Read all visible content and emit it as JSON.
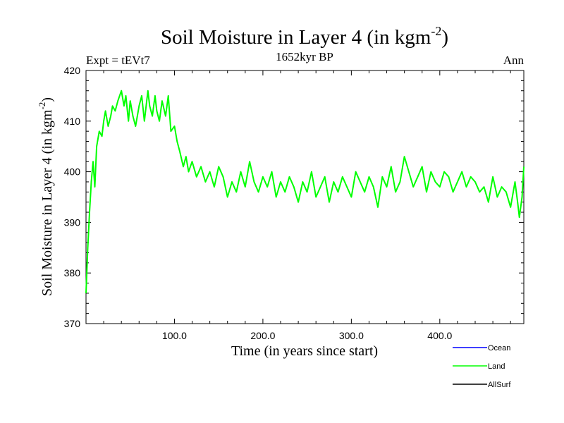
{
  "chart_data": {
    "type": "line",
    "title_main": "Soil Moisture in Layer 4 (in kgm",
    "title_sup": "-2",
    "title_close": ")",
    "left_label": "Expt = tEVt7",
    "center_label": "1652kyr BP",
    "right_label": "Ann",
    "xlabel": "Time (in years since start)",
    "ylabel_main": "Soil Moisture in Layer 4 (in kgm",
    "ylabel_sup": "-2",
    "ylabel_close": ")",
    "xlim": [
      0,
      495
    ],
    "ylim": [
      370,
      420
    ],
    "x_ticks": [
      100,
      200,
      300,
      400
    ],
    "x_tick_labels": [
      "100.0",
      "200.0",
      "300.0",
      "400.0"
    ],
    "y_ticks": [
      370,
      380,
      390,
      400,
      410,
      420
    ],
    "y_tick_labels": [
      "370",
      "380",
      "390",
      "400",
      "410",
      "420"
    ],
    "legend": [
      {
        "name": "Ocean",
        "color": "#0000ff"
      },
      {
        "name": "Land",
        "color": "#00ff00"
      },
      {
        "name": "AllSurf",
        "color": "#000000"
      }
    ],
    "series": [
      {
        "name": "Land",
        "color": "#00ff00",
        "x": [
          0,
          2,
          4,
          6,
          8,
          10,
          12,
          15,
          18,
          20,
          22,
          25,
          28,
          30,
          33,
          36,
          40,
          43,
          45,
          48,
          50,
          53,
          56,
          60,
          63,
          66,
          70,
          72,
          75,
          78,
          80,
          83,
          86,
          90,
          93,
          96,
          100,
          103,
          106,
          110,
          113,
          116,
          120,
          125,
          130,
          135,
          140,
          145,
          150,
          155,
          160,
          165,
          170,
          175,
          180,
          185,
          190,
          195,
          200,
          205,
          210,
          215,
          220,
          225,
          230,
          235,
          240,
          245,
          250,
          255,
          260,
          265,
          270,
          275,
          280,
          285,
          290,
          295,
          300,
          305,
          310,
          315,
          320,
          325,
          330,
          335,
          340,
          345,
          350,
          355,
          360,
          365,
          370,
          375,
          380,
          385,
          390,
          395,
          400,
          405,
          410,
          415,
          420,
          425,
          430,
          435,
          440,
          445,
          450,
          455,
          460,
          465,
          470,
          475,
          480,
          485,
          488,
          490,
          493,
          495
        ],
        "values": [
          376,
          385,
          392,
          398,
          402,
          397,
          405,
          408,
          407,
          410,
          412,
          409,
          411,
          413,
          412,
          414,
          416,
          413,
          415,
          410,
          414,
          411,
          409,
          413,
          415,
          410,
          416,
          413,
          411,
          415,
          412,
          410,
          414,
          411,
          415,
          408,
          409,
          406,
          404,
          401,
          403,
          400,
          402,
          399,
          401,
          398,
          400,
          397,
          401,
          399,
          395,
          398,
          396,
          400,
          397,
          402,
          398,
          396,
          399,
          397,
          400,
          395,
          398,
          396,
          399,
          397,
          394,
          398,
          396,
          400,
          395,
          397,
          399,
          394,
          398,
          396,
          399,
          397,
          395,
          400,
          398,
          396,
          399,
          397,
          393,
          399,
          397,
          401,
          396,
          398,
          403,
          400,
          397,
          399,
          401,
          396,
          400,
          398,
          397,
          400,
          399,
          396,
          398,
          400,
          397,
          399,
          398,
          396,
          397,
          394,
          399,
          395,
          397,
          396,
          393,
          398,
          394,
          391,
          395,
          401
        ]
      }
    ]
  }
}
